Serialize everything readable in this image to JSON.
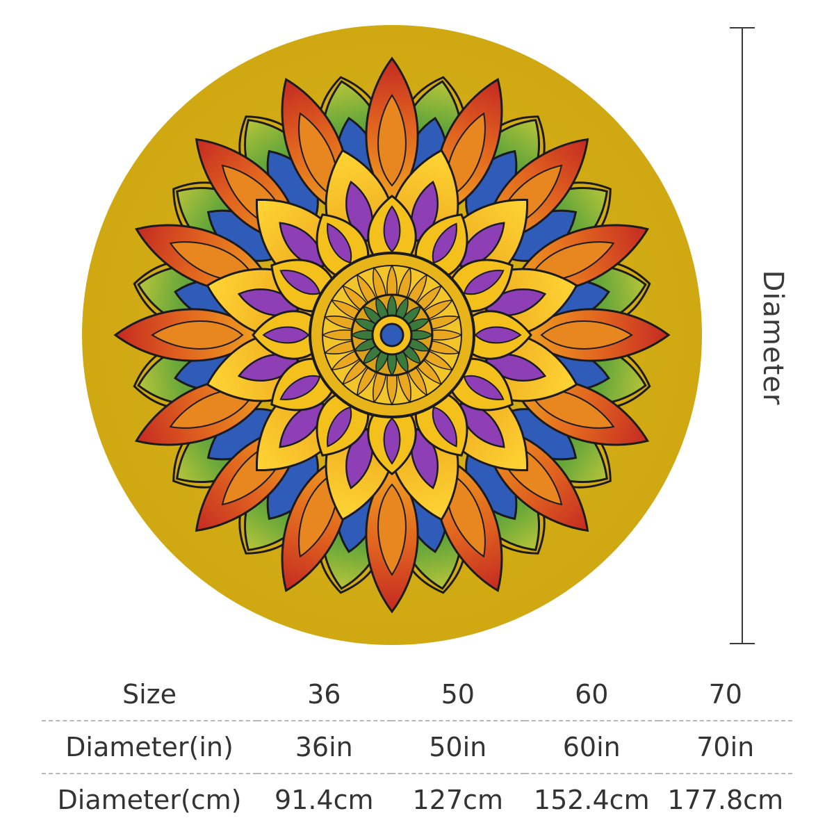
{
  "dimension_label": "Diameter",
  "size_table": {
    "rows": [
      {
        "label": "Size",
        "values": [
          "36",
          "50",
          "60",
          "70"
        ]
      },
      {
        "label": "Diameter(in)",
        "values": [
          "36in",
          "50in",
          "60in",
          "70in"
        ]
      },
      {
        "label": "Diameter(cm)",
        "values": [
          "91.4cm",
          "127cm",
          "152.4cm",
          "177.8cm"
        ]
      }
    ]
  },
  "colors": {
    "background_yellow": "#d3ac16",
    "ring_red": "#cf3225",
    "ring_orange": "#e8861f",
    "ring_green": "#4e9a35",
    "ring_blue": "#2f5cb8",
    "petal_yellow": "#f4c01c",
    "petal_purple": "#8e3fb6",
    "outline": "#1b1b1b"
  }
}
